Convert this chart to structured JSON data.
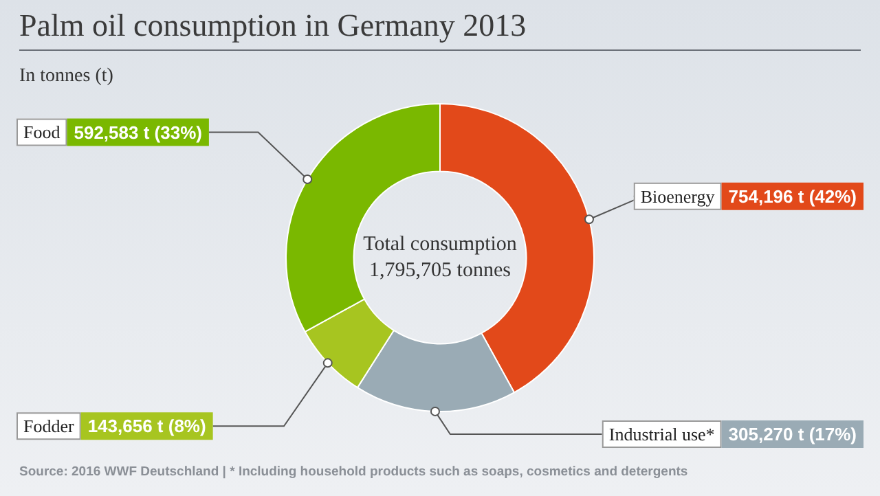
{
  "chart_data": {
    "type": "donut",
    "title": "Palm oil consumption in Germany 2013",
    "subtitle": "In tonnes (t)",
    "categories": [
      "Bioenergy",
      "Industrial use*",
      "Fodder",
      "Food"
    ],
    "values": [
      754196,
      305270,
      143656,
      592583
    ],
    "colors": [
      "#e2491a",
      "#9aabb5",
      "#a7c520",
      "#7ab800"
    ],
    "value_labels": [
      "754,196 t (42%)",
      "305,270 t (17%)",
      "143,656 t (8%)",
      "592,583 t (33%)"
    ],
    "annotations": [
      "Total consumption",
      "1,795,705 tonnes",
      "Source: 2016 WWF Deutschland | * Including household products such as soaps, cosmetics and detergents"
    ],
    "legend": false
  }
}
